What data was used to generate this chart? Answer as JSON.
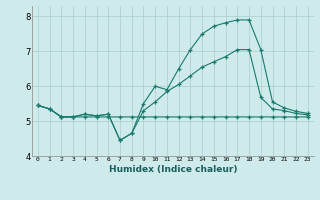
{
  "xlabel": "Humidex (Indice chaleur)",
  "ylabel": "",
  "bg_color": "#ceeaea",
  "line_color": "#1a7a6e",
  "grid_color": "#aacccc",
  "xlim": [
    -0.5,
    23.5
  ],
  "ylim": [
    4,
    8.3
  ],
  "yticks": [
    4,
    5,
    6,
    7,
    8
  ],
  "xticks": [
    0,
    1,
    2,
    3,
    4,
    5,
    6,
    7,
    8,
    9,
    10,
    11,
    12,
    13,
    14,
    15,
    16,
    17,
    18,
    19,
    20,
    21,
    22,
    23
  ],
  "line1_x": [
    0,
    1,
    2,
    3,
    4,
    5,
    6,
    7,
    8,
    9,
    10,
    11,
    12,
    13,
    14,
    15,
    16,
    17,
    18,
    19,
    20,
    21,
    22,
    23
  ],
  "line1_y": [
    5.45,
    5.35,
    5.12,
    5.12,
    5.12,
    5.12,
    5.12,
    5.12,
    5.12,
    5.12,
    5.12,
    5.12,
    5.12,
    5.12,
    5.12,
    5.12,
    5.12,
    5.12,
    5.12,
    5.12,
    5.12,
    5.12,
    5.12,
    5.12
  ],
  "line2_x": [
    0,
    1,
    2,
    3,
    4,
    5,
    6,
    7,
    8,
    9,
    10,
    11,
    12,
    13,
    14,
    15,
    16,
    17,
    18,
    19,
    20,
    21,
    22,
    23
  ],
  "line2_y": [
    5.45,
    5.35,
    5.12,
    5.12,
    5.2,
    5.15,
    5.2,
    4.45,
    4.65,
    5.5,
    6.0,
    5.9,
    6.5,
    7.05,
    7.5,
    7.72,
    7.82,
    7.9,
    7.9,
    7.05,
    5.55,
    5.38,
    5.28,
    5.22
  ],
  "line3_x": [
    0,
    1,
    2,
    3,
    4,
    5,
    6,
    7,
    8,
    9,
    10,
    11,
    12,
    13,
    14,
    15,
    16,
    17,
    18,
    19,
    20,
    21,
    22,
    23
  ],
  "line3_y": [
    5.45,
    5.35,
    5.12,
    5.12,
    5.2,
    5.15,
    5.2,
    4.45,
    4.65,
    5.3,
    5.55,
    5.85,
    6.05,
    6.3,
    6.55,
    6.7,
    6.85,
    7.05,
    7.05,
    5.68,
    5.35,
    5.3,
    5.22,
    5.18
  ]
}
